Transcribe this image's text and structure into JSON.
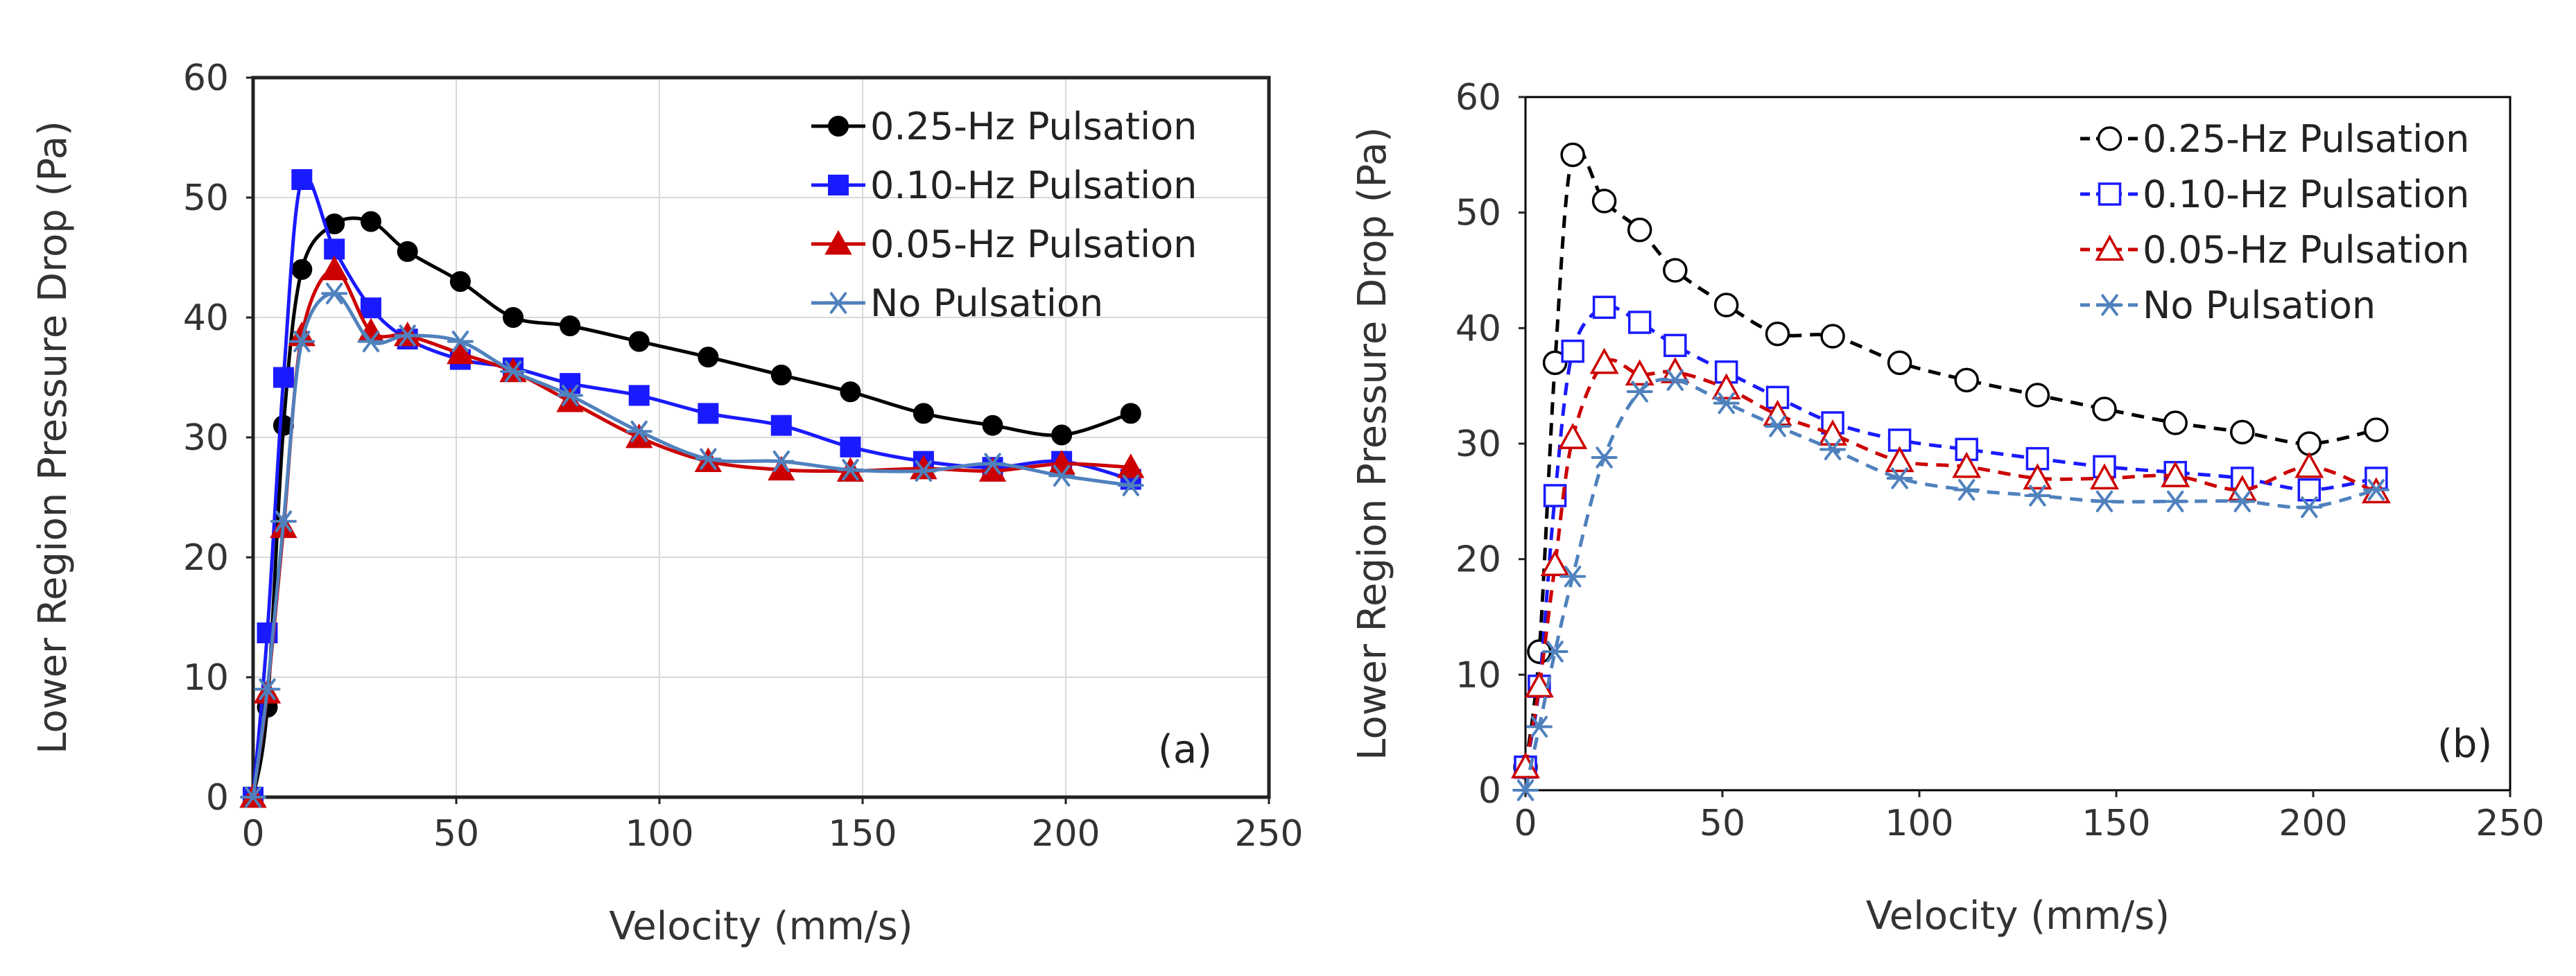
{
  "chart_data": [
    {
      "type": "line",
      "panel_label": "(a)",
      "xlabel": "Velocity (mm/s)",
      "ylabel": "Lower Region Pressure Drop (Pa)",
      "xlim": [
        0,
        250
      ],
      "ylim": [
        0,
        60
      ],
      "xticks": [
        0,
        50,
        100,
        150,
        200,
        250
      ],
      "yticks": [
        0,
        10,
        20,
        30,
        40,
        50,
        60
      ],
      "grid": true,
      "legend_position": "top-right",
      "series": [
        {
          "name": "0.25-Hz Pulsation",
          "color": "#000000",
          "marker": "circle-filled",
          "line": "solid",
          "x": [
            0,
            3.5,
            7.5,
            12,
            20,
            29,
            38,
            51,
            64,
            78,
            95,
            112,
            130,
            147,
            165,
            182,
            199,
            216
          ],
          "y": [
            0,
            7.5,
            31,
            44,
            47.8,
            48,
            45.5,
            43,
            40,
            39.3,
            38,
            36.7,
            35.2,
            33.8,
            32,
            31,
            30.2,
            32
          ]
        },
        {
          "name": "0.10-Hz Pulsation",
          "color": "#1a1aff",
          "marker": "square-filled",
          "line": "solid",
          "x": [
            0,
            3.5,
            7.5,
            12,
            20,
            29,
            38,
            51,
            64,
            78,
            95,
            112,
            130,
            147,
            165,
            182,
            199,
            216
          ],
          "y": [
            0,
            13.7,
            35,
            51.5,
            45.7,
            40.8,
            38.2,
            36.5,
            35.8,
            34.5,
            33.5,
            32,
            31,
            29.2,
            28,
            27.5,
            28,
            26.5
          ]
        },
        {
          "name": "0.05-Hz Pulsation",
          "color": "#cc0000",
          "marker": "triangle-filled",
          "line": "solid",
          "x": [
            0,
            3.5,
            7.5,
            12,
            20,
            29,
            38,
            51,
            64,
            78,
            95,
            112,
            130,
            147,
            165,
            182,
            199,
            216
          ],
          "y": [
            0,
            8.7,
            22.5,
            38.5,
            44,
            38.8,
            38.5,
            37,
            35.5,
            33,
            30,
            28,
            27.3,
            27.2,
            27.4,
            27.2,
            27.8,
            27.5
          ]
        },
        {
          "name": "No Pulsation",
          "color": "#4f81bd",
          "marker": "asterisk",
          "line": "solid",
          "x": [
            0,
            3.5,
            7.5,
            12,
            20,
            29,
            38,
            51,
            64,
            78,
            95,
            112,
            130,
            147,
            165,
            182,
            199,
            216
          ],
          "y": [
            0,
            9,
            23,
            38,
            42,
            38,
            38.5,
            38,
            35.5,
            33.5,
            30.5,
            28.2,
            28,
            27.3,
            27.2,
            27.8,
            26.8,
            26
          ]
        }
      ]
    },
    {
      "type": "line",
      "panel_label": "(b)",
      "xlabel": "Velocity (mm/s)",
      "ylabel": "Lower Region Pressure Drop (Pa)",
      "xlim": [
        0,
        250
      ],
      "ylim": [
        0,
        60
      ],
      "xticks": [
        0,
        50,
        100,
        150,
        200,
        250
      ],
      "yticks": [
        0,
        10,
        20,
        30,
        40,
        50,
        60
      ],
      "grid": false,
      "legend_position": "top-right",
      "series": [
        {
          "name": "0.25-Hz Pulsation",
          "color": "#000000",
          "marker": "circle-open",
          "line": "dashed",
          "x": [
            0,
            3.5,
            7.5,
            12,
            20,
            29,
            38,
            51,
            64,
            78,
            95,
            112,
            130,
            147,
            165,
            182,
            199,
            216
          ],
          "y": [
            2,
            12,
            37,
            55,
            51,
            48.5,
            45,
            42,
            39.5,
            39.3,
            37,
            35.5,
            34.2,
            33,
            31.8,
            31,
            30,
            31.2
          ]
        },
        {
          "name": "0.10-Hz Pulsation",
          "color": "#1a1aff",
          "marker": "square-open",
          "line": "dashed",
          "x": [
            0,
            3.5,
            7.5,
            12,
            20,
            29,
            38,
            51,
            64,
            78,
            95,
            112,
            130,
            147,
            165,
            182,
            199,
            216
          ],
          "y": [
            2,
            9,
            25.5,
            38,
            41.8,
            40.5,
            38.5,
            36.2,
            34,
            31.8,
            30.3,
            29.5,
            28.7,
            28,
            27.5,
            27,
            26,
            27
          ]
        },
        {
          "name": "0.05-Hz Pulsation",
          "color": "#cc0000",
          "marker": "triangle-open",
          "line": "dashed",
          "x": [
            0,
            3.5,
            7.5,
            12,
            20,
            29,
            38,
            51,
            64,
            78,
            95,
            112,
            130,
            147,
            165,
            182,
            199,
            216
          ],
          "y": [
            2,
            9,
            19.5,
            30.5,
            37,
            36,
            36.2,
            34.8,
            32.5,
            30.8,
            28.5,
            28,
            27,
            27,
            27.2,
            26,
            28,
            25.8
          ]
        },
        {
          "name": "No Pulsation",
          "color": "#4f81bd",
          "marker": "asterisk",
          "line": "dashed",
          "x": [
            0,
            3.5,
            7.5,
            12,
            20,
            29,
            38,
            51,
            64,
            78,
            95,
            112,
            130,
            147,
            165,
            182,
            199,
            216
          ],
          "y": [
            0,
            5.5,
            12,
            18.5,
            28.8,
            34.5,
            35.5,
            33.5,
            31.5,
            29.5,
            27,
            26,
            25.5,
            25,
            25,
            25,
            24.5,
            26
          ]
        }
      ]
    }
  ]
}
